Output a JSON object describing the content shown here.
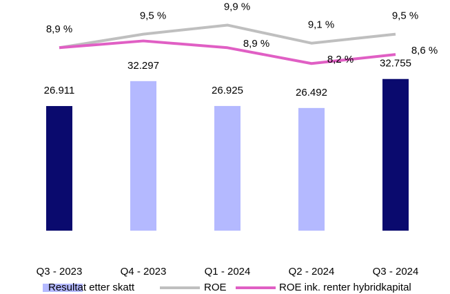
{
  "chart_data": {
    "type": "bar",
    "categories": [
      "Q3 - 2023",
      "Q4 - 2023",
      "Q1 - 2024",
      "Q2 - 2024",
      "Q3 - 2024"
    ],
    "ylim": [
      0,
      40000
    ],
    "y2lim": [
      0.8,
      9.0
    ],
    "series": [
      {
        "name": "Resultat etter skatt",
        "type": "bar",
        "color": "#b4b9ff",
        "colors": [
          "#0a0a6e",
          "#b4b9ff",
          "#b4b9ff",
          "#b4b9ff",
          "#0a0a6e"
        ],
        "values": [
          26911,
          32297,
          26925,
          26492,
          32755
        ],
        "value_labels": [
          "26.911",
          "32.297",
          "26.925",
          "26.492",
          "32.755"
        ]
      },
      {
        "name": "ROE",
        "type": "line",
        "axis": "y2",
        "color": "#bfbfbf",
        "values": [
          8.9,
          9.5,
          9.9,
          9.1,
          9.5
        ],
        "value_labels": [
          "8,9 %",
          "9,5 %",
          "9,9 %",
          "9,1 %",
          "9,5 %"
        ]
      },
      {
        "name": "ROE ink. renter hybridkapital",
        "type": "line",
        "axis": "y2",
        "color": "#e05fc4",
        "values": [
          8.9,
          9.2,
          8.9,
          8.2,
          8.6
        ],
        "value_labels": [
          null,
          null,
          "8,9 %",
          "8,2 %",
          "8,6 %"
        ]
      }
    ]
  }
}
